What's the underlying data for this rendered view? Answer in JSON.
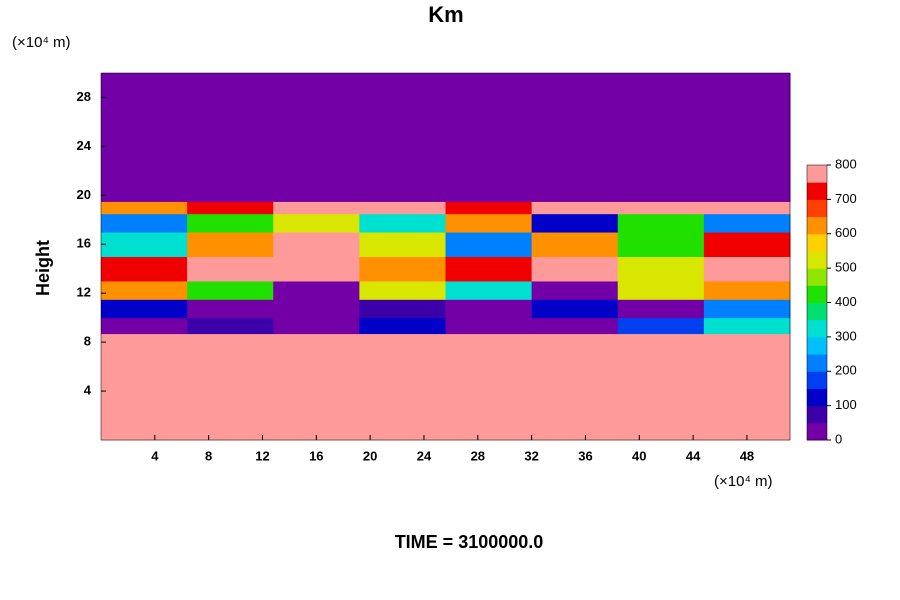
{
  "chart_data": {
    "type": "contour",
    "title": "Km",
    "ylabel": "Height",
    "yunit": "(×10⁴ m)",
    "xunit": "(×10⁴ m)",
    "footer": "TIME = 3100000.0",
    "xlim": [
      0,
      51.2
    ],
    "ylim": [
      0,
      30
    ],
    "xticks": [
      4,
      8,
      12,
      16,
      20,
      24,
      28,
      32,
      36,
      40,
      44,
      48
    ],
    "yticks": [
      4,
      8,
      12,
      16,
      20,
      24,
      28
    ],
    "x_edges": [
      0,
      6.4,
      12.8,
      19.2,
      25.6,
      32,
      38.4,
      44.8,
      51.2
    ],
    "y_edges": [
      0,
      8.7,
      10,
      11.5,
      13,
      15,
      17,
      18.5,
      19.5,
      30
    ],
    "z": [
      [
        800,
        800,
        800,
        800,
        800,
        800,
        800,
        800
      ],
      [
        0,
        50,
        0,
        100,
        0,
        0,
        150,
        300
      ],
      [
        100,
        0,
        0,
        50,
        0,
        100,
        0,
        200
      ],
      [
        600,
        400,
        0,
        500,
        300,
        0,
        500,
        600
      ],
      [
        700,
        800,
        800,
        600,
        700,
        800,
        500,
        750
      ],
      [
        300,
        600,
        800,
        500,
        200,
        600,
        400,
        700
      ],
      [
        200,
        400,
        500,
        300,
        600,
        100,
        400,
        200
      ],
      [
        600,
        700,
        800,
        800,
        700,
        800,
        800,
        750
      ],
      [
        0,
        0,
        0,
        0,
        0,
        0,
        0,
        0
      ]
    ],
    "levels": [
      0,
      50,
      100,
      150,
      200,
      250,
      300,
      350,
      400,
      450,
      500,
      550,
      600,
      650,
      700,
      750,
      800
    ],
    "colors": [
      "#7300a6",
      "#3c00a8",
      "#0000c8",
      "#0040f0",
      "#0080ff",
      "#00c0ff",
      "#00e0d0",
      "#00e070",
      "#20e000",
      "#90e600",
      "#d8e600",
      "#ffd000",
      "#ff9000",
      "#ff4000",
      "#f00000",
      "#ff9a9a"
    ],
    "cbticks": [
      0,
      100,
      200,
      300,
      400,
      500,
      600,
      700,
      800
    ]
  }
}
